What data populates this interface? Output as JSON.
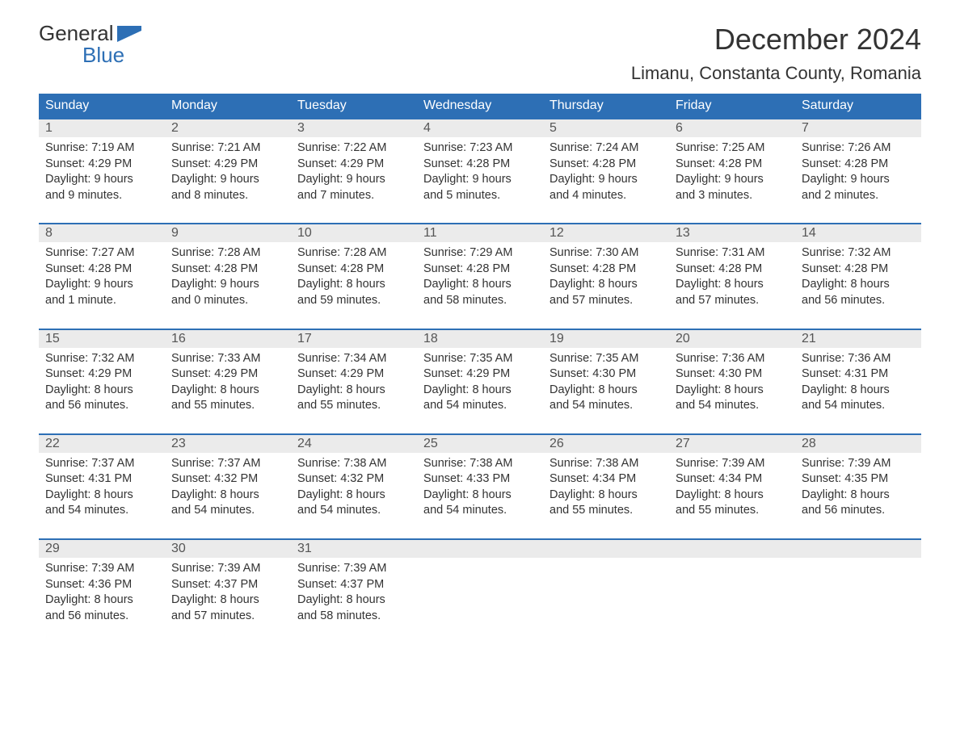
{
  "logo": {
    "general": "General",
    "blue": "Blue"
  },
  "title": "December 2024",
  "location": "Limanu, Constanta County, Romania",
  "colors": {
    "header_bg": "#2d6fb5",
    "header_text": "#ffffff",
    "daynum_bg": "#ebebeb",
    "week_border": "#2d6fb5",
    "text": "#333333",
    "logo_blue": "#2d6fb5"
  },
  "typography": {
    "title_fontsize": 36,
    "location_fontsize": 22,
    "dow_fontsize": 16,
    "daynum_fontsize": 16,
    "body_fontsize": 14.5
  },
  "layout": {
    "columns": 7,
    "rows": 5
  },
  "days_of_week": [
    "Sunday",
    "Monday",
    "Tuesday",
    "Wednesday",
    "Thursday",
    "Friday",
    "Saturday"
  ],
  "weeks": [
    [
      {
        "n": "1",
        "sunrise": "Sunrise: 7:19 AM",
        "sunset": "Sunset: 4:29 PM",
        "d1": "Daylight: 9 hours",
        "d2": "and 9 minutes."
      },
      {
        "n": "2",
        "sunrise": "Sunrise: 7:21 AM",
        "sunset": "Sunset: 4:29 PM",
        "d1": "Daylight: 9 hours",
        "d2": "and 8 minutes."
      },
      {
        "n": "3",
        "sunrise": "Sunrise: 7:22 AM",
        "sunset": "Sunset: 4:29 PM",
        "d1": "Daylight: 9 hours",
        "d2": "and 7 minutes."
      },
      {
        "n": "4",
        "sunrise": "Sunrise: 7:23 AM",
        "sunset": "Sunset: 4:28 PM",
        "d1": "Daylight: 9 hours",
        "d2": "and 5 minutes."
      },
      {
        "n": "5",
        "sunrise": "Sunrise: 7:24 AM",
        "sunset": "Sunset: 4:28 PM",
        "d1": "Daylight: 9 hours",
        "d2": "and 4 minutes."
      },
      {
        "n": "6",
        "sunrise": "Sunrise: 7:25 AM",
        "sunset": "Sunset: 4:28 PM",
        "d1": "Daylight: 9 hours",
        "d2": "and 3 minutes."
      },
      {
        "n": "7",
        "sunrise": "Sunrise: 7:26 AM",
        "sunset": "Sunset: 4:28 PM",
        "d1": "Daylight: 9 hours",
        "d2": "and 2 minutes."
      }
    ],
    [
      {
        "n": "8",
        "sunrise": "Sunrise: 7:27 AM",
        "sunset": "Sunset: 4:28 PM",
        "d1": "Daylight: 9 hours",
        "d2": "and 1 minute."
      },
      {
        "n": "9",
        "sunrise": "Sunrise: 7:28 AM",
        "sunset": "Sunset: 4:28 PM",
        "d1": "Daylight: 9 hours",
        "d2": "and 0 minutes."
      },
      {
        "n": "10",
        "sunrise": "Sunrise: 7:28 AM",
        "sunset": "Sunset: 4:28 PM",
        "d1": "Daylight: 8 hours",
        "d2": "and 59 minutes."
      },
      {
        "n": "11",
        "sunrise": "Sunrise: 7:29 AM",
        "sunset": "Sunset: 4:28 PM",
        "d1": "Daylight: 8 hours",
        "d2": "and 58 minutes."
      },
      {
        "n": "12",
        "sunrise": "Sunrise: 7:30 AM",
        "sunset": "Sunset: 4:28 PM",
        "d1": "Daylight: 8 hours",
        "d2": "and 57 minutes."
      },
      {
        "n": "13",
        "sunrise": "Sunrise: 7:31 AM",
        "sunset": "Sunset: 4:28 PM",
        "d1": "Daylight: 8 hours",
        "d2": "and 57 minutes."
      },
      {
        "n": "14",
        "sunrise": "Sunrise: 7:32 AM",
        "sunset": "Sunset: 4:28 PM",
        "d1": "Daylight: 8 hours",
        "d2": "and 56 minutes."
      }
    ],
    [
      {
        "n": "15",
        "sunrise": "Sunrise: 7:32 AM",
        "sunset": "Sunset: 4:29 PM",
        "d1": "Daylight: 8 hours",
        "d2": "and 56 minutes."
      },
      {
        "n": "16",
        "sunrise": "Sunrise: 7:33 AM",
        "sunset": "Sunset: 4:29 PM",
        "d1": "Daylight: 8 hours",
        "d2": "and 55 minutes."
      },
      {
        "n": "17",
        "sunrise": "Sunrise: 7:34 AM",
        "sunset": "Sunset: 4:29 PM",
        "d1": "Daylight: 8 hours",
        "d2": "and 55 minutes."
      },
      {
        "n": "18",
        "sunrise": "Sunrise: 7:35 AM",
        "sunset": "Sunset: 4:29 PM",
        "d1": "Daylight: 8 hours",
        "d2": "and 54 minutes."
      },
      {
        "n": "19",
        "sunrise": "Sunrise: 7:35 AM",
        "sunset": "Sunset: 4:30 PM",
        "d1": "Daylight: 8 hours",
        "d2": "and 54 minutes."
      },
      {
        "n": "20",
        "sunrise": "Sunrise: 7:36 AM",
        "sunset": "Sunset: 4:30 PM",
        "d1": "Daylight: 8 hours",
        "d2": "and 54 minutes."
      },
      {
        "n": "21",
        "sunrise": "Sunrise: 7:36 AM",
        "sunset": "Sunset: 4:31 PM",
        "d1": "Daylight: 8 hours",
        "d2": "and 54 minutes."
      }
    ],
    [
      {
        "n": "22",
        "sunrise": "Sunrise: 7:37 AM",
        "sunset": "Sunset: 4:31 PM",
        "d1": "Daylight: 8 hours",
        "d2": "and 54 minutes."
      },
      {
        "n": "23",
        "sunrise": "Sunrise: 7:37 AM",
        "sunset": "Sunset: 4:32 PM",
        "d1": "Daylight: 8 hours",
        "d2": "and 54 minutes."
      },
      {
        "n": "24",
        "sunrise": "Sunrise: 7:38 AM",
        "sunset": "Sunset: 4:32 PM",
        "d1": "Daylight: 8 hours",
        "d2": "and 54 minutes."
      },
      {
        "n": "25",
        "sunrise": "Sunrise: 7:38 AM",
        "sunset": "Sunset: 4:33 PM",
        "d1": "Daylight: 8 hours",
        "d2": "and 54 minutes."
      },
      {
        "n": "26",
        "sunrise": "Sunrise: 7:38 AM",
        "sunset": "Sunset: 4:34 PM",
        "d1": "Daylight: 8 hours",
        "d2": "and 55 minutes."
      },
      {
        "n": "27",
        "sunrise": "Sunrise: 7:39 AM",
        "sunset": "Sunset: 4:34 PM",
        "d1": "Daylight: 8 hours",
        "d2": "and 55 minutes."
      },
      {
        "n": "28",
        "sunrise": "Sunrise: 7:39 AM",
        "sunset": "Sunset: 4:35 PM",
        "d1": "Daylight: 8 hours",
        "d2": "and 56 minutes."
      }
    ],
    [
      {
        "n": "29",
        "sunrise": "Sunrise: 7:39 AM",
        "sunset": "Sunset: 4:36 PM",
        "d1": "Daylight: 8 hours",
        "d2": "and 56 minutes."
      },
      {
        "n": "30",
        "sunrise": "Sunrise: 7:39 AM",
        "sunset": "Sunset: 4:37 PM",
        "d1": "Daylight: 8 hours",
        "d2": "and 57 minutes."
      },
      {
        "n": "31",
        "sunrise": "Sunrise: 7:39 AM",
        "sunset": "Sunset: 4:37 PM",
        "d1": "Daylight: 8 hours",
        "d2": "and 58 minutes."
      },
      null,
      null,
      null,
      null
    ]
  ]
}
